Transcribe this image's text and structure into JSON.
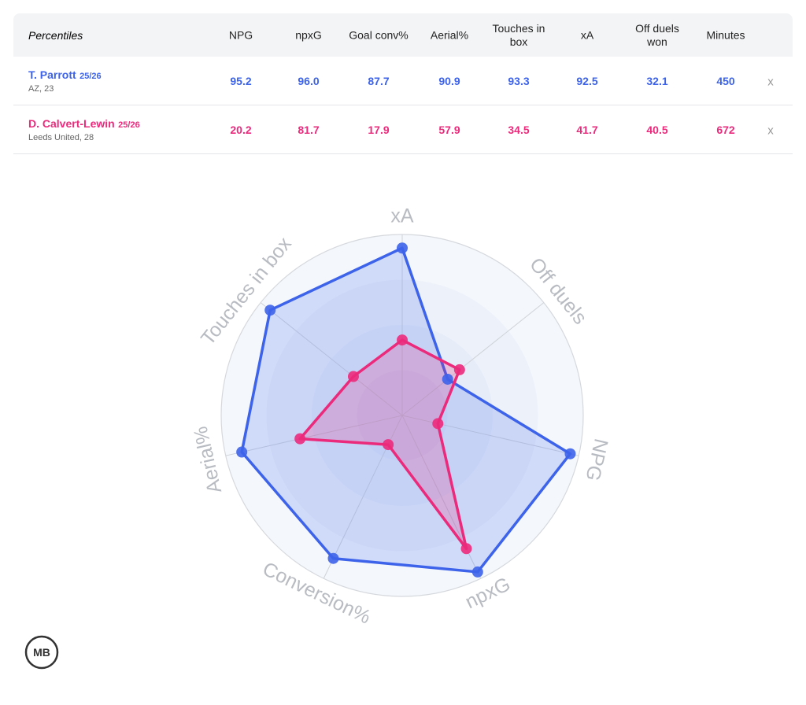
{
  "table": {
    "header": [
      "Percentiles",
      "NPG",
      "npxG",
      "Goal conv%",
      "Aerial%",
      "Touches in box",
      "xA",
      "Off duels won",
      "Minutes"
    ],
    "rows": [
      {
        "name": "T. Parrott",
        "season": "25/26",
        "info": "AZ, 23",
        "color": "#3d63ea",
        "cells": [
          "95.2",
          "96.0",
          "87.7",
          "90.9",
          "93.3",
          "92.5",
          "32.1",
          "450"
        ],
        "remove": "x"
      },
      {
        "name": "D. Calvert-Lewin",
        "season": "25/26",
        "info": "Leeds United, 28",
        "color": "#ec2a7c",
        "cells": [
          "20.2",
          "81.7",
          "17.9",
          "57.9",
          "34.5",
          "41.7",
          "40.5",
          "672"
        ],
        "remove": "x"
      }
    ]
  },
  "chart_data": {
    "type": "radar",
    "axes": [
      "xA",
      "Off duels",
      "NPG",
      "npxG",
      "Conversion%",
      "Aerial%",
      "Touches in box"
    ],
    "rlim": [
      0,
      100
    ],
    "rticks": [
      25,
      50,
      75,
      100
    ],
    "series": [
      {
        "name": "T. Parrott",
        "color": "#3d63ea",
        "values": [
          92.5,
          32.1,
          95.2,
          96.0,
          87.7,
          90.9,
          93.3
        ]
      },
      {
        "name": "D. Calvert-Lewin",
        "color": "#ec2a7c",
        "values": [
          41.7,
          40.5,
          20.2,
          81.7,
          17.9,
          57.9,
          34.5
        ]
      }
    ]
  },
  "logo": "MB"
}
